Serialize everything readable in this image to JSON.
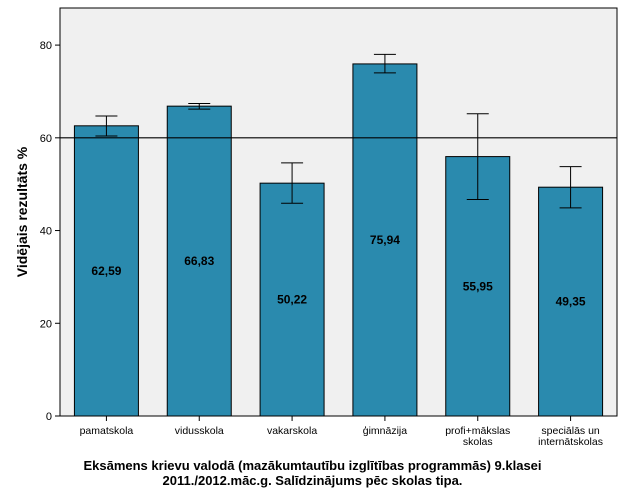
{
  "caption": {
    "line1": "Eksāmens krievu valodā (mazākumtautību izglītības programmās) 9.klasei",
    "line2": "2011./2012.māc.g. Salīdzinājums pēc skolas tipa."
  },
  "colors": {
    "bar": "#2a8aae",
    "plot_background": "#f0f0f0",
    "reference_line": "#000000"
  },
  "chart_data": {
    "type": "bar",
    "ylabel": "Vidējais rezultāts %",
    "xlabel": "",
    "ylim": [
      0,
      88
    ],
    "yticks": [
      0,
      20,
      40,
      60,
      80
    ],
    "reference_line": 60,
    "grid": false,
    "categories": [
      [
        "pamatskola"
      ],
      [
        "vidusskola"
      ],
      [
        "vakarskola"
      ],
      [
        "ģimnāzija"
      ],
      [
        "profi+mākslas",
        "skolas"
      ],
      [
        "speciālās un",
        "internātskolas"
      ]
    ],
    "values": [
      62.59,
      66.83,
      50.22,
      75.94,
      55.95,
      49.35
    ],
    "value_labels": [
      "62,59",
      "66,83",
      "50,22",
      "75,94",
      "55,95",
      "49,35"
    ],
    "error_low": [
      60.4,
      66.2,
      45.9,
      74.0,
      46.7,
      44.9
    ],
    "error_high": [
      64.7,
      67.4,
      54.6,
      78.0,
      65.2,
      53.8
    ]
  }
}
